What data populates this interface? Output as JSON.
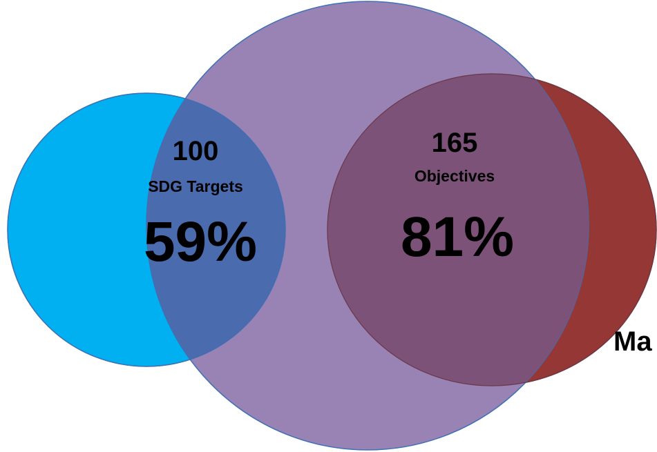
{
  "colors": {
    "left_circle": "#00B0F0",
    "center_circle": "#8064A2",
    "right_circle": "#953735",
    "left_overlap": "#4A6BAE",
    "right_overlap": "#7C5278",
    "outline": "#3F6FB5"
  },
  "regions": {
    "left_overlap": {
      "count": "100",
      "label": "SDG Targets",
      "percent": "59%"
    },
    "right_overlap": {
      "count": "165",
      "label": "Objectives",
      "percent": "81%"
    }
  },
  "right_circle_label": "Ma"
}
